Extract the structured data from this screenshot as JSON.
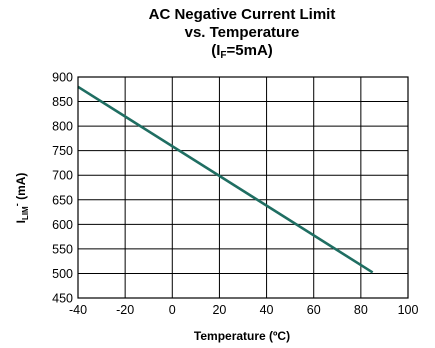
{
  "title": {
    "line1": "AC Negative Current Limit",
    "line2": "vs. Temperature",
    "line3_prefix": "(I",
    "line3_sub": "F",
    "line3_suffix": "=5mA)"
  },
  "chart_data": {
    "type": "line",
    "title": "AC Negative Current Limit vs. Temperature (IF=5mA)",
    "xlabel": "Temperature (ºC)",
    "ylabel_parts": {
      "prefix": "I",
      "sub": "LIM",
      "sup": "-",
      "suffix": " (mA)"
    },
    "xlim": [
      -40,
      100
    ],
    "ylim": [
      450,
      900
    ],
    "x_ticks": [
      -40,
      -20,
      0,
      20,
      40,
      60,
      80,
      100
    ],
    "y_ticks": [
      450,
      500,
      550,
      600,
      650,
      700,
      750,
      800,
      850,
      900
    ],
    "grid": true,
    "line_color": "#1f6e62",
    "series": [
      {
        "x": [
          -40,
          85
        ],
        "y": [
          880,
          502
        ]
      }
    ]
  }
}
